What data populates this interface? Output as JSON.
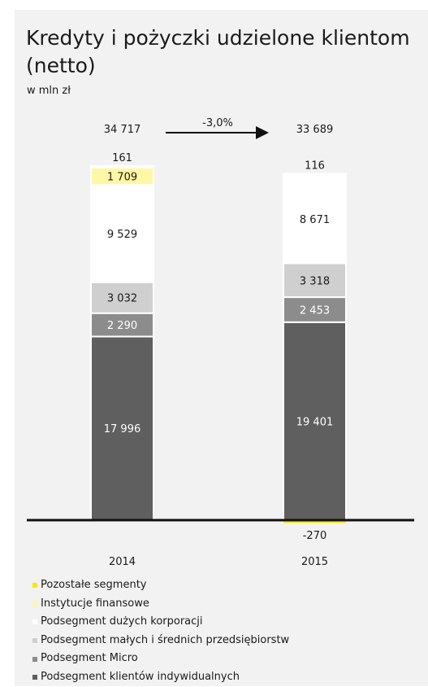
{
  "chart_data": {
    "type": "bar",
    "title": "Kredyty i pożyczki udzielone klientom (netto)",
    "subtitle": "w mln zł",
    "categories": [
      "2014",
      "2015"
    ],
    "totals": [
      "34 717",
      "33 689"
    ],
    "change_label": "-3,0%",
    "series": [
      {
        "name": "Podsegment klientów indywidualnych",
        "color": "#5f5f5f",
        "values": [
          17996,
          19401
        ],
        "labels": [
          "17 996",
          "19 401"
        ]
      },
      {
        "name": "Podsegment Micro",
        "color": "#8c8c8c",
        "values": [
          2290,
          2453
        ],
        "labels": [
          "2 290",
          "2 453"
        ]
      },
      {
        "name": "Podsegment małych i średnich przedsiębiorstw",
        "color": "#cfcfcf",
        "values": [
          3032,
          3318
        ],
        "labels": [
          "3 032",
          "3 318"
        ]
      },
      {
        "name": "Podsegment dużych korporacji",
        "color": "#ffffff",
        "values": [
          9529,
          8671
        ],
        "labels": [
          "9 529",
          "8 671"
        ]
      },
      {
        "name": "Instytucje finansowe",
        "color": "#fff7a6",
        "values": [
          1709,
          0
        ],
        "labels": [
          "1 709",
          ""
        ]
      },
      {
        "name": "Pozostałe segmenty",
        "color": "#ffe600",
        "values": [
          161,
          116
        ],
        "labels": [
          "161",
          "116"
        ]
      }
    ],
    "negative": {
      "series": "Pozostałe segmenty",
      "values": [
        0,
        -270
      ],
      "labels": [
        "",
        "-270"
      ]
    },
    "legend_order": [
      "Pozostałe segmenty",
      "Instytucje finansowe",
      "Podsegment dużych korporacji",
      "Podsegment małych i średnich przedsiębiorstw",
      "Podsegment Micro",
      "Podsegment klientów indywidualnych"
    ]
  }
}
